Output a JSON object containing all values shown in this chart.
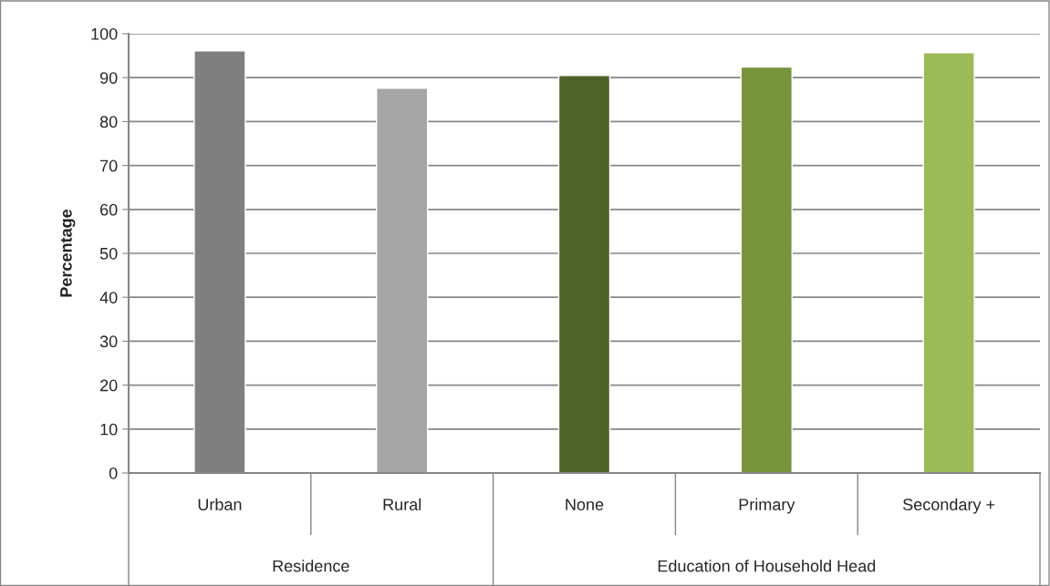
{
  "chart_data": {
    "type": "bar",
    "ylabel": "Percentage",
    "categories": [
      "Urban",
      "Rural",
      "None",
      "Primary",
      "Secondary +"
    ],
    "values": [
      96.1,
      87.6,
      90.5,
      92.4,
      95.7
    ],
    "colors": [
      "#7f7f7f",
      "#a5a5a5",
      "#4f6228",
      "#77933c",
      "#9bbb59"
    ],
    "ylim": [
      0,
      100
    ],
    "yticks": [
      0,
      10,
      20,
      30,
      40,
      50,
      60,
      70,
      80,
      90,
      100
    ],
    "grid": "y",
    "annotations": [
      "Residence",
      "Education of Household Head"
    ]
  }
}
